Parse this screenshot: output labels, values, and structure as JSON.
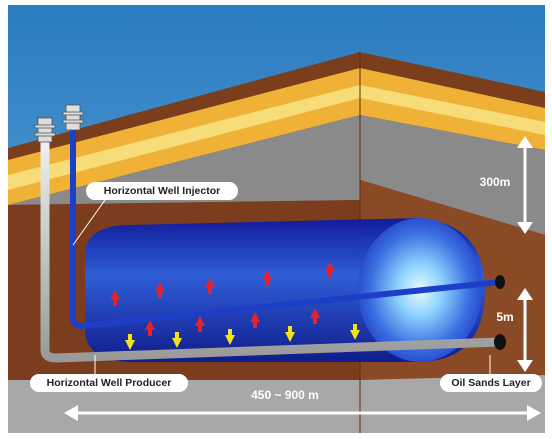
{
  "labels": {
    "injector": "Horizontal Well Injector",
    "producer": "Horizontal Well Producer",
    "depth": "300m",
    "thickness": "5m",
    "length": "450 ~ 900 m",
    "layer": "Oil Sands Layer"
  }
}
